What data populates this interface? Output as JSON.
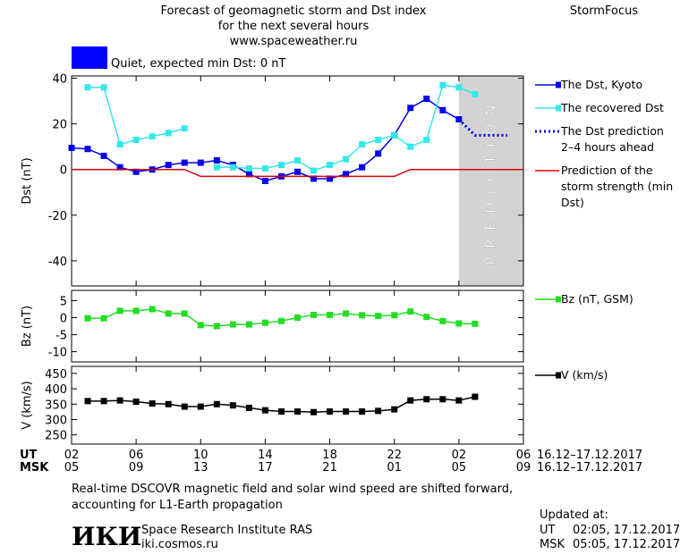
{
  "header": {
    "title_lines": [
      "Forecast of geomagnetic storm and Dst index",
      "for the next several hours",
      "www.spaceweather.ru"
    ],
    "brand": "StormFocus"
  },
  "status": {
    "text": "Quiet, expected min Dst: 0 nT",
    "color": "#0000ff"
  },
  "chart_data": [
    {
      "type": "line",
      "ylabel": "Dst (nT)",
      "xlim": [
        0,
        28
      ],
      "ylim": [
        -51,
        41
      ],
      "yticks": [
        -40,
        -20,
        0,
        20,
        40
      ],
      "xticks": [
        0,
        4,
        8,
        12,
        16,
        20,
        24,
        28
      ],
      "legend": "right",
      "shaded_region": {
        "xlim": [
          24,
          28
        ],
        "label": "PREDICTION",
        "color": "#d3d3d3"
      },
      "series": [
        {
          "name": "The Dst, Kyoto",
          "color": "#0000ee",
          "marker": "square",
          "dash": "solid",
          "x": [
            0,
            1,
            2,
            3,
            4,
            5,
            6,
            7,
            8,
            9,
            10,
            11,
            12,
            13,
            14,
            15,
            16,
            17,
            18,
            19,
            20,
            21,
            22,
            23,
            24
          ],
          "values": [
            9.5,
            9,
            6,
            1,
            -1,
            0,
            2,
            3,
            3,
            4,
            2,
            -2,
            -5,
            -3,
            -1,
            -4,
            -4,
            -2,
            1,
            7,
            15,
            27,
            31,
            26,
            22
          ]
        },
        {
          "name": "The recovered Dst",
          "color": "#33e8e8",
          "marker": "square",
          "dash": "solid",
          "x": [
            1,
            2,
            3,
            4,
            5,
            6,
            7,
            8,
            9,
            10,
            11,
            12,
            13,
            14,
            15,
            16,
            17,
            18,
            19,
            20,
            21,
            22,
            23,
            24,
            25
          ],
          "values": [
            36,
            36,
            11,
            13,
            14.5,
            16,
            18,
            null,
            1,
            1,
            0.5,
            0.5,
            2,
            4,
            -0.5,
            2,
            4.5,
            11,
            13,
            15,
            10,
            13,
            37,
            36,
            33
          ]
        },
        {
          "name": "The Dst prediction 2–4 hours ahead",
          "color": "#0000cc",
          "marker": "none",
          "dash": "dotted",
          "x": [
            24,
            25,
            26,
            27
          ],
          "values": [
            22,
            15,
            15,
            15
          ]
        },
        {
          "name": "Prediction of the storm strength (min Dst)",
          "color": "#dd0000",
          "marker": "none",
          "dash": "solid",
          "x": [
            0,
            7,
            8,
            20,
            21,
            28
          ],
          "values": [
            0,
            0,
            -3,
            -3,
            0,
            0
          ]
        }
      ]
    },
    {
      "type": "line",
      "ylabel": "Bz (nT)",
      "xlim": [
        0,
        28
      ],
      "ylim": [
        -13,
        8
      ],
      "yticks": [
        -10,
        -5,
        0,
        5
      ],
      "xticks": [
        0,
        4,
        8,
        12,
        16,
        20,
        24,
        28
      ],
      "legend": "right",
      "series": [
        {
          "name": "Bz (nT, GSM)",
          "color": "#22dd22",
          "marker": "square",
          "dash": "solid",
          "x": [
            1,
            2,
            3,
            4,
            5,
            6,
            7,
            8,
            9,
            10,
            11,
            12,
            13,
            14,
            15,
            16,
            17,
            18,
            19,
            20,
            21,
            22,
            23,
            24,
            25
          ],
          "values": [
            -0.2,
            -0.2,
            2,
            2,
            2.5,
            1.2,
            1.2,
            -2.2,
            -2.5,
            -2,
            -2,
            -1.5,
            -1,
            0,
            0.8,
            0.8,
            1.2,
            0.7,
            0.5,
            0.7,
            1.8,
            0.2,
            -1,
            -1.7,
            -1.8
          ]
        }
      ]
    },
    {
      "type": "line",
      "ylabel": "V (km/s)",
      "xlim": [
        0,
        28
      ],
      "ylim": [
        220,
        473
      ],
      "yticks": [
        250,
        300,
        350,
        400,
        450
      ],
      "xticks": [
        {
          "value": 0,
          "label": "02"
        },
        {
          "value": 4,
          "label": "06"
        },
        {
          "value": 8,
          "label": "10"
        },
        {
          "value": 12,
          "label": "14"
        },
        {
          "value": 16,
          "label": "18"
        },
        {
          "value": 20,
          "label": "22"
        },
        {
          "value": 24,
          "label": "02"
        },
        {
          "value": 28,
          "label": "06"
        }
      ],
      "msk_xticks": [
        {
          "value": 0,
          "label": "05"
        },
        {
          "value": 4,
          "label": "09"
        },
        {
          "value": 8,
          "label": "13"
        },
        {
          "value": 12,
          "label": "17"
        },
        {
          "value": 16,
          "label": "21"
        },
        {
          "value": 20,
          "label": "01"
        },
        {
          "value": 24,
          "label": "05"
        },
        {
          "value": 28,
          "label": "09"
        }
      ],
      "xtick_rows": [
        {
          "name": "UT",
          "date_range": "16.12–17.12.2017"
        },
        {
          "name": "MSK",
          "date_range": "16.12–17.12.2017"
        }
      ],
      "legend": "right",
      "series": [
        {
          "name": "V (km/s)",
          "color": "#000000",
          "marker": "square",
          "dash": "solid",
          "x": [
            1,
            2,
            3,
            4,
            5,
            6,
            7,
            8,
            9,
            10,
            11,
            12,
            13,
            14,
            15,
            16,
            17,
            18,
            19,
            20,
            21,
            22,
            23,
            24,
            25
          ],
          "values": [
            360,
            360,
            362,
            358,
            352,
            350,
            342,
            342,
            350,
            346,
            338,
            330,
            326,
            326,
            324,
            326,
            326,
            326,
            328,
            333,
            362,
            366,
            366,
            362,
            374
          ]
        }
      ]
    }
  ],
  "footer": {
    "note": "Real-time DSCOVR magnetic field and solar wind speed are shifted forward, accounting for L1-Earth propagation",
    "logo": "ИКИ",
    "institute": "Space Research Institute RAS",
    "url": "iki.cosmos.ru",
    "updated_title": "Updated at:",
    "updated": [
      {
        "zone": "UT",
        "time": "02:05, 17.12.2017"
      },
      {
        "zone": "MSK",
        "time": "05:05, 17.12.2017"
      }
    ]
  }
}
